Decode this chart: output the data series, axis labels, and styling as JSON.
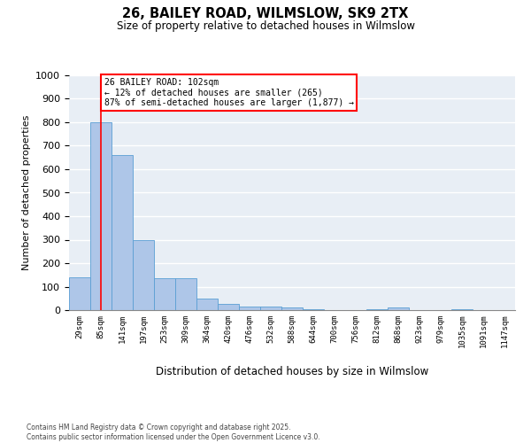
{
  "title": "26, BAILEY ROAD, WILMSLOW, SK9 2TX",
  "subtitle": "Size of property relative to detached houses in Wilmslow",
  "xlabel": "Distribution of detached houses by size in Wilmslow",
  "ylabel": "Number of detached properties",
  "bins": [
    "29sqm",
    "85sqm",
    "141sqm",
    "197sqm",
    "253sqm",
    "309sqm",
    "364sqm",
    "420sqm",
    "476sqm",
    "532sqm",
    "588sqm",
    "644sqm",
    "700sqm",
    "756sqm",
    "812sqm",
    "868sqm",
    "923sqm",
    "979sqm",
    "1035sqm",
    "1091sqm",
    "1147sqm"
  ],
  "values": [
    140,
    800,
    660,
    300,
    135,
    135,
    50,
    25,
    15,
    15,
    10,
    5,
    0,
    0,
    5,
    10,
    0,
    0,
    5,
    0,
    0
  ],
  "bar_color": "#aec6e8",
  "bar_edge_color": "#5a9fd4",
  "vline_x": 1.0,
  "vline_color": "red",
  "annotation_text": "26 BAILEY ROAD: 102sqm\n← 12% of detached houses are smaller (265)\n87% of semi-detached houses are larger (1,877) →",
  "annotation_box_facecolor": "white",
  "annotation_box_edgecolor": "red",
  "background_color": "#e8eef5",
  "grid_color": "white",
  "ylim": [
    0,
    1000
  ],
  "yticks": [
    0,
    100,
    200,
    300,
    400,
    500,
    600,
    700,
    800,
    900,
    1000
  ],
  "footer_line1": "Contains HM Land Registry data © Crown copyright and database right 2025.",
  "footer_line2": "Contains public sector information licensed under the Open Government Licence v3.0."
}
